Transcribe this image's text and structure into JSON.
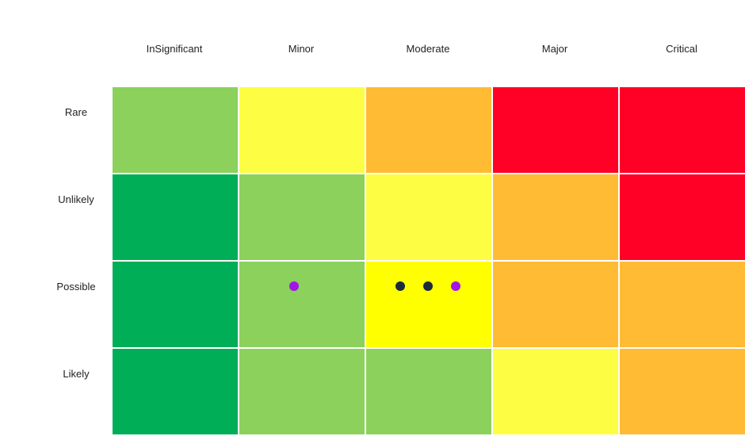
{
  "chart_data": {
    "type": "heatmap",
    "columns": [
      "InSignificant",
      "Minor",
      "Moderate",
      "Major",
      "Critical"
    ],
    "rows": [
      "Rare",
      "Unlikely",
      "Possible",
      "Likely"
    ],
    "palette": {
      "light-green": "#8bd15c",
      "green": "#00ae58",
      "light-yellow": "#fdfd44",
      "yellow": "#ffff00",
      "orange": "#ffbb33",
      "red": "#ff0027"
    },
    "cells": [
      [
        "light-green",
        "light-yellow",
        "orange",
        "red",
        "red"
      ],
      [
        "green",
        "light-green",
        "light-yellow",
        "orange",
        "red"
      ],
      [
        "green",
        "light-green",
        "yellow",
        "orange",
        "orange"
      ],
      [
        "green",
        "light-green",
        "light-green",
        "light-yellow",
        "orange"
      ]
    ],
    "points": [
      {
        "row": "Possible",
        "column": "Minor",
        "color": "#a314e8"
      },
      {
        "row": "Possible",
        "column": "Moderate",
        "color": "#1c2a3b"
      },
      {
        "row": "Possible",
        "column": "Moderate",
        "color": "#1c2a3b"
      },
      {
        "row": "Possible",
        "column": "Moderate",
        "color": "#a314e8"
      }
    ]
  }
}
